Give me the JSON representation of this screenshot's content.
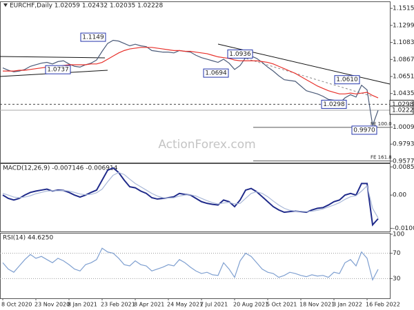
{
  "chart_data": [
    {
      "type": "line",
      "title": "EURCHF,Daily 1.02059 1.02432 1.02035 1.02228",
      "watermark": "ActionForex.com",
      "ylim": [
        0.955,
        1.1595
      ],
      "yticks": [
        {
          "value": 1.1515,
          "label": "1.15150"
        },
        {
          "value": 1.1299,
          "label": "1.12990"
        },
        {
          "value": 1.1083,
          "label": "1.10830"
        },
        {
          "value": 1.0867,
          "label": "1.08670"
        },
        {
          "value": 1.0651,
          "label": "1.06510"
        },
        {
          "value": 1.0435,
          "label": "1.04350"
        },
        {
          "value": 1.0009,
          "label": "1.00090"
        },
        {
          "value": 0.9793,
          "label": "0.97930"
        },
        {
          "value": 0.9577,
          "label": "0.95770"
        }
      ],
      "grid": false,
      "series": [
        {
          "color": "#4a5a78",
          "values": [
            1.076,
            1.073,
            1.071,
            1.072,
            1.074,
            1.078,
            1.08,
            1.082,
            1.083,
            1.081,
            1.084,
            1.085,
            1.081,
            1.078,
            1.077,
            1.08,
            1.082,
            1.086,
            1.097,
            1.107,
            1.111,
            1.11,
            1.107,
            1.104,
            1.106,
            1.104,
            1.103,
            1.098,
            1.097,
            1.096,
            1.096,
            1.095,
            1.098,
            1.097,
            1.096,
            1.092,
            1.089,
            1.087,
            1.085,
            1.083,
            1.087,
            1.082,
            1.074,
            1.079,
            1.089,
            1.091,
            1.088,
            1.083,
            1.077,
            1.072,
            1.066,
            1.061,
            1.06,
            1.059,
            1.053,
            1.047,
            1.045,
            1.043,
            1.04,
            1.036,
            1.035,
            1.031,
            1.038,
            1.042,
            1.039,
            1.054,
            1.048,
            1.003,
            1.02228
          ]
        },
        {
          "color": "#e8302a",
          "values": [
            1.072,
            1.072,
            1.072,
            1.073,
            1.073,
            1.074,
            1.075,
            1.076,
            1.077,
            1.078,
            1.078,
            1.079,
            1.08,
            1.08,
            1.08,
            1.08,
            1.081,
            1.081,
            1.083,
            1.087,
            1.091,
            1.095,
            1.098,
            1.1,
            1.101,
            1.102,
            1.102,
            1.102,
            1.101,
            1.1,
            1.099,
            1.098,
            1.098,
            1.097,
            1.097,
            1.096,
            1.095,
            1.094,
            1.092,
            1.09,
            1.089,
            1.088,
            1.086,
            1.085,
            1.085,
            1.085,
            1.085,
            1.084,
            1.083,
            1.081,
            1.078,
            1.075,
            1.072,
            1.069,
            1.065,
            1.061,
            1.057,
            1.053,
            1.05,
            1.047,
            1.045,
            1.043,
            1.043,
            1.044,
            1.043,
            1.044,
            1.045,
            1.041,
            1.038
          ]
        }
      ],
      "annotations": [
        1.1149,
        1.0737,
        1.0694,
        1.0936,
        1.0298,
        {
          "value": 1.061,
          "label": "1.0610"
        },
        {
          "value": 0.997,
          "label": "0.9970"
        }
      ],
      "price_markers": [
        {
          "value": 1.0298,
          "label": "1.02980"
        },
        {
          "value": 1.02228,
          "label": "1.02228"
        }
      ],
      "fe_levels": [
        {
          "value": 1.0006,
          "label": "FE 100.0"
        },
        {
          "value": 0.958,
          "label": "FE 161.8"
        }
      ]
    },
    {
      "type": "line",
      "title": "MACD(12,26,9) -0.007146 -0.006914",
      "ylim": [
        -0.0112,
        0.0096
      ],
      "yticks": [
        0.008507,
        {
          "value": 0,
          "label": "0.00"
        },
        -0.010034
      ],
      "grid": false,
      "series": [
        {
          "color": "#1f2a8a",
          "values": [
            0.0,
            -0.001,
            -0.0015,
            -0.001,
            0.0,
            0.0008,
            0.0012,
            0.0015,
            0.0018,
            0.0012,
            0.0015,
            0.0014,
            0.0008,
            0.0,
            -0.0006,
            0.0,
            0.0008,
            0.0015,
            0.0045,
            0.0075,
            0.0082,
            0.0068,
            0.0045,
            0.0025,
            0.0022,
            0.0012,
            0.0005,
            -0.0008,
            -0.0012,
            -0.001,
            -0.0008,
            -0.0005,
            0.0005,
            0.0002,
            0.0,
            -0.001,
            -0.002,
            -0.0025,
            -0.0028,
            -0.003,
            -0.0015,
            -0.002,
            -0.0035,
            -0.0015,
            0.0015,
            0.002,
            0.001,
            -0.0005,
            -0.002,
            -0.0035,
            -0.0045,
            -0.0052,
            -0.005,
            -0.0048,
            -0.005,
            -0.0052,
            -0.0045,
            -0.004,
            -0.0038,
            -0.003,
            -0.002,
            -0.0015,
            0.0,
            0.0005,
            0.0,
            0.0035,
            0.0035,
            -0.009,
            -0.007146
          ]
        },
        {
          "color": "#a9b8d8",
          "values": [
            0.0005,
            0.0,
            -0.0006,
            -0.0008,
            -0.0006,
            -0.0002,
            0.0004,
            0.0008,
            0.0012,
            0.0013,
            0.0013,
            0.0014,
            0.0012,
            0.0008,
            0.0003,
            0.0001,
            0.0002,
            0.0007,
            0.0018,
            0.004,
            0.006,
            0.0068,
            0.0062,
            0.0048,
            0.0035,
            0.0025,
            0.0015,
            0.0005,
            -0.0003,
            -0.0008,
            -0.0009,
            -0.0008,
            -0.0003,
            0.0,
            0.0001,
            -0.0003,
            -0.001,
            -0.0017,
            -0.0023,
            -0.0027,
            -0.0024,
            -0.0022,
            -0.0027,
            -0.0025,
            -0.001,
            0.0005,
            0.001,
            0.0005,
            -0.0005,
            -0.0018,
            -0.003,
            -0.004,
            -0.0046,
            -0.0048,
            -0.0049,
            -0.005,
            -0.0049,
            -0.0046,
            -0.0042,
            -0.0036,
            -0.003,
            -0.0023,
            -0.0013,
            -0.0005,
            -0.0002,
            0.0012,
            0.0028,
            -0.004,
            -0.006914
          ]
        }
      ]
    },
    {
      "type": "line",
      "title": "RSI(14) 44.6250",
      "ylim": [
        0,
        100
      ],
      "yticks": [
        100,
        70,
        30
      ],
      "grid": true,
      "categories": [
        "8 Oct 2020",
        null,
        null,
        null,
        null,
        null,
        "23 Nov 2020",
        null,
        null,
        null,
        null,
        null,
        "8 Jan 2021",
        null,
        null,
        null,
        null,
        null,
        "23 Feb 2021",
        null,
        null,
        null,
        null,
        null,
        "8 Apr 2021",
        null,
        null,
        null,
        null,
        null,
        "24 May 2021",
        null,
        null,
        null,
        null,
        null,
        "7 Jul 2021",
        null,
        null,
        null,
        null,
        null,
        "20 Aug 2021",
        null,
        null,
        null,
        null,
        null,
        "5 Oct 2021",
        null,
        null,
        null,
        null,
        null,
        "18 Nov 2021",
        null,
        null,
        null,
        null,
        null,
        "3 Jan 2022",
        null,
        null,
        null,
        null,
        null,
        "16 Feb 2022",
        null,
        null
      ],
      "series": [
        {
          "color": "#7e9fd0",
          "values": [
            55,
            45,
            40,
            50,
            60,
            68,
            62,
            65,
            60,
            55,
            62,
            58,
            52,
            45,
            42,
            52,
            55,
            60,
            78,
            72,
            70,
            62,
            52,
            50,
            58,
            52,
            50,
            42,
            45,
            48,
            52,
            50,
            60,
            55,
            48,
            42,
            38,
            40,
            36,
            35,
            55,
            45,
            32,
            58,
            70,
            65,
            55,
            45,
            40,
            38,
            32,
            35,
            40,
            38,
            35,
            33,
            36,
            34,
            35,
            32,
            40,
            38,
            55,
            60,
            50,
            72,
            62,
            28,
            44.625
          ]
        }
      ]
    }
  ]
}
